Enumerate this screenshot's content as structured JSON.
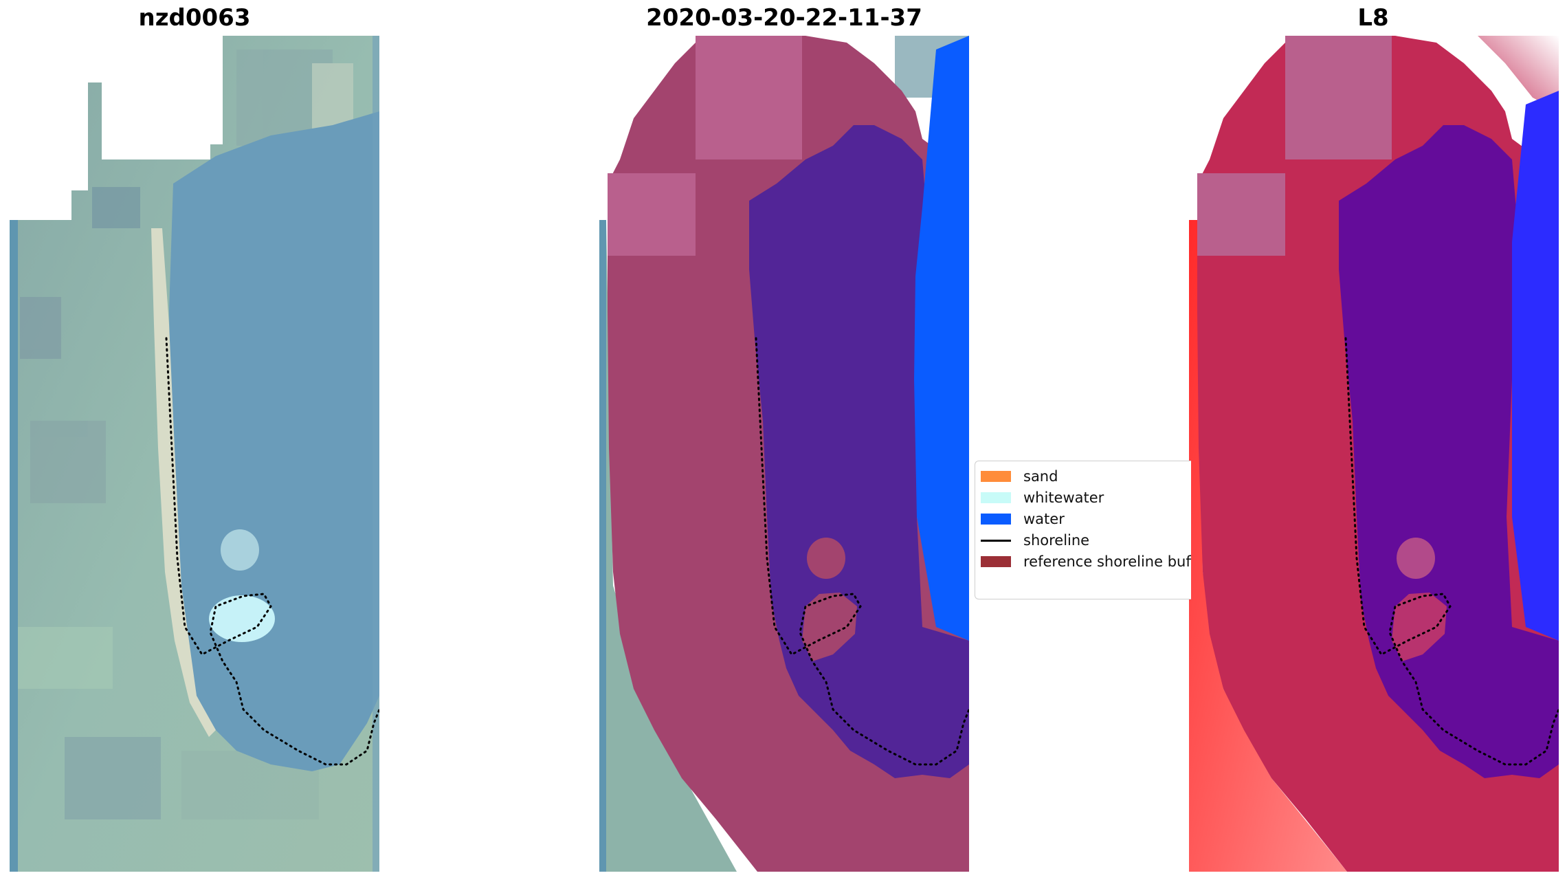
{
  "panels": [
    {
      "title": "nzd0063",
      "kind": "rgb"
    },
    {
      "title": "2020-03-20-22-11-37",
      "kind": "classified"
    },
    {
      "title": "L8",
      "kind": "index"
    }
  ],
  "legend": {
    "items": [
      {
        "label": "sand",
        "color": "#ff8c3a",
        "type": "patch"
      },
      {
        "label": "whitewater",
        "color": "#c8fbf8",
        "type": "patch"
      },
      {
        "label": "water",
        "color": "#0a5cff",
        "type": "patch"
      },
      {
        "label": "shoreline",
        "color": "#000000",
        "type": "line"
      },
      {
        "label": "reference shoreline buffer",
        "color": "#9b2f36",
        "type": "patch"
      }
    ]
  },
  "colors": {
    "rgb_land": "#8fb5ab",
    "rgb_water": "#6a9cba",
    "rgb_sand": "#d8dcc8",
    "classified_buffer": "#a3446e",
    "classified_lagoon": "#522597",
    "classified_water": "#0a5cff",
    "index_buffer": "#c22a55",
    "index_lagoon": "#640c9a",
    "index_water": "#2c2cff",
    "index_red": "#ff5a5a"
  }
}
